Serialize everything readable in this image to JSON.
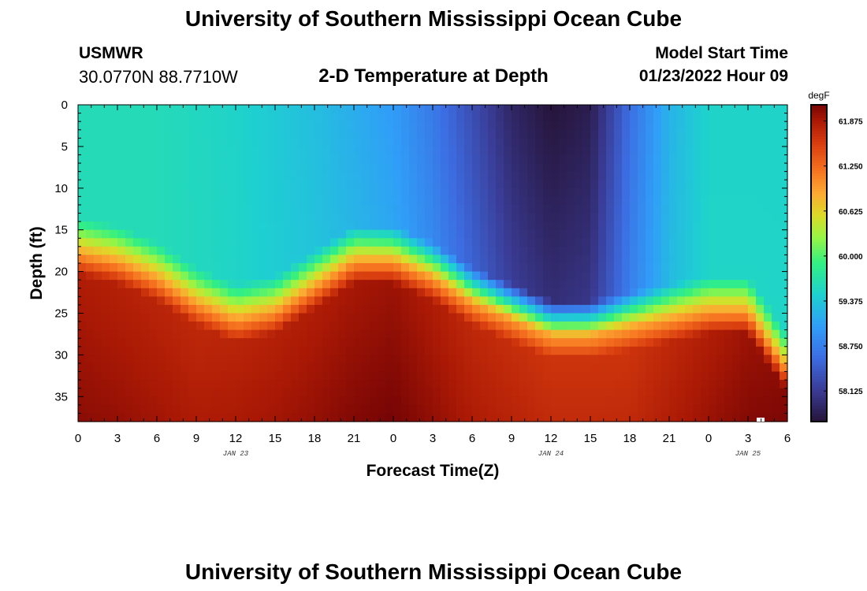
{
  "header": {
    "title": "University of Southern Mississippi Ocean Cube",
    "station": "USMWR",
    "coords": "30.0770N  88.7710W",
    "subtitle": "2-D Temperature at Depth",
    "start_label": "Model Start Time",
    "start_value": "01/23/2022 Hour 09"
  },
  "footer": {
    "title": "University of Southern Mississippi Ocean Cube"
  },
  "chart_data": {
    "type": "heatmap",
    "title": "2-D Temperature at Depth",
    "xlabel": "Forecast Time(Z)",
    "ylabel": "Depth (ft)",
    "x_range_hours": [
      0,
      54
    ],
    "x_tick_labels": [
      "0",
      "3",
      "6",
      "9",
      "12",
      "15",
      "18",
      "21",
      "0",
      "3",
      "6",
      "9",
      "12",
      "15",
      "18",
      "21",
      "0",
      "3",
      "6"
    ],
    "date_labels": [
      {
        "label": "JAN 23",
        "hour": 12
      },
      {
        "label": "JAN 24",
        "hour": 36
      },
      {
        "label": "JAN 25",
        "hour": 51
      }
    ],
    "ylim": [
      0,
      38
    ],
    "y_ticks": [
      0,
      5,
      10,
      15,
      20,
      25,
      30,
      35
    ],
    "colorbar": {
      "unit": "degF",
      "min": 57.7,
      "max": 62.1,
      "tick_values": [
        61.875,
        61.25,
        60.625,
        60.0,
        59.375,
        58.75,
        58.125
      ],
      "tick_labels": [
        "61.875",
        "61.250",
        "60.625",
        "60.000",
        "59.375",
        "58.750",
        "58.125"
      ]
    },
    "thermocline_depth_ft": {
      "hours": [
        0,
        3,
        6,
        9,
        12,
        15,
        18,
        21,
        24,
        27,
        30,
        33,
        36,
        39,
        42,
        45,
        48,
        51,
        54
      ],
      "values": [
        16,
        17,
        19,
        22,
        24,
        23,
        20,
        17,
        17,
        19,
        22,
        24,
        26,
        26,
        25,
        24,
        23,
        23,
        30
      ]
    },
    "surface_temperature_degF": {
      "hours": [
        0,
        6,
        12,
        18,
        24,
        27,
        30,
        33,
        36,
        39,
        42,
        45,
        48,
        54
      ],
      "values": [
        59.6,
        59.6,
        59.5,
        59.3,
        59.0,
        58.7,
        58.3,
        57.9,
        57.7,
        57.8,
        58.6,
        59.2,
        59.5,
        59.5
      ]
    },
    "bottom_temperature_degF": {
      "hours": [
        0,
        9,
        18,
        24,
        30,
        36,
        42,
        48,
        54
      ],
      "values": [
        61.8,
        61.7,
        61.8,
        61.9,
        61.7,
        61.6,
        61.6,
        61.8,
        62.0
      ]
    }
  }
}
